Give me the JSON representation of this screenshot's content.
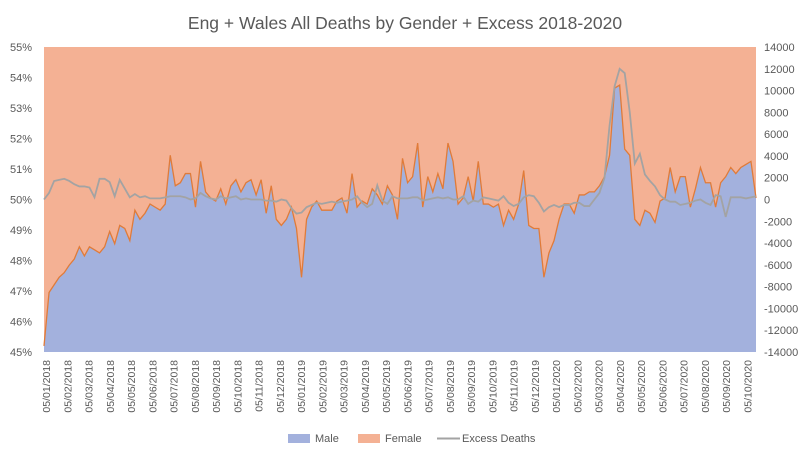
{
  "chart_data": {
    "type": "area",
    "title": "Eng + Wales All Deaths by Gender + Excess 2018-2020",
    "xlabel": "",
    "ylabel": "",
    "y_left": {
      "ylim": [
        0.45,
        0.55
      ],
      "ticks": [
        0.45,
        0.46,
        0.47,
        0.48,
        0.49,
        0.5,
        0.51,
        0.52,
        0.53,
        0.54,
        0.55
      ],
      "tick_labels": [
        "45%",
        "46%",
        "47%",
        "48%",
        "49%",
        "50%",
        "51%",
        "52%",
        "53%",
        "54%",
        "55%"
      ]
    },
    "y_right": {
      "ylim": [
        -14000,
        14000
      ],
      "ticks": [
        -14000,
        -12000,
        -10000,
        -8000,
        -6000,
        -4000,
        -2000,
        0,
        2000,
        4000,
        6000,
        8000,
        10000,
        12000,
        14000
      ],
      "tick_labels": [
        "-14000",
        "-12000",
        "-10000",
        "-8000",
        "-6000",
        "-4000",
        "-2000",
        "0",
        "2000",
        "4000",
        "6000",
        "8000",
        "10000",
        "12000",
        "14000"
      ]
    },
    "x_tick_labels": [
      "05/01/2018",
      "05/02/2018",
      "05/03/2018",
      "05/04/2018",
      "05/05/2018",
      "05/06/2018",
      "05/07/2018",
      "05/08/2018",
      "05/09/2018",
      "05/10/2018",
      "05/11/2018",
      "05/12/2018",
      "05/01/2019",
      "05/02/2019",
      "05/03/2019",
      "05/04/2019",
      "05/05/2019",
      "05/06/2019",
      "05/07/2019",
      "05/08/2019",
      "05/09/2019",
      "05/10/2019",
      "05/11/2019",
      "05/12/2019",
      "05/01/2020",
      "05/02/2020",
      "05/03/2020",
      "05/04/2020",
      "05/05/2020",
      "05/06/2020",
      "05/07/2020",
      "05/08/2020",
      "05/09/2020",
      "05/10/2020"
    ],
    "legend_position": "bottom",
    "grid": false,
    "series": [
      {
        "name": "Male",
        "axis": "left",
        "color": "#a3b1dd",
        "values": [
          0.452,
          0.4695,
          0.472,
          0.4745,
          0.476,
          0.4785,
          0.4805,
          0.4845,
          0.4815,
          0.4845,
          0.4835,
          0.4825,
          0.4845,
          0.4895,
          0.4855,
          0.4915,
          0.4905,
          0.4865,
          0.4965,
          0.4935,
          0.4955,
          0.4985,
          0.4975,
          0.4965,
          0.4985,
          0.5145,
          0.5045,
          0.5055,
          0.5085,
          0.5085,
          0.4975,
          0.5125,
          0.5025,
          0.5005,
          0.4995,
          0.5035,
          0.4985,
          0.5045,
          0.5065,
          0.5025,
          0.5055,
          0.5065,
          0.5015,
          0.5065,
          0.4955,
          0.5045,
          0.4935,
          0.4915,
          0.4935,
          0.4975,
          0.4905,
          0.4745,
          0.4935,
          0.4975,
          0.4995,
          0.4965,
          0.4965,
          0.4965,
          0.4995,
          0.5005,
          0.4955,
          0.5085,
          0.4975,
          0.4995,
          0.4985,
          0.5035,
          0.5015,
          0.4985,
          0.5045,
          0.5015,
          0.4935,
          0.5135,
          0.5055,
          0.5075,
          0.5185,
          0.4975,
          0.5075,
          0.5025,
          0.5085,
          0.5035,
          0.5185,
          0.5125,
          0.4985,
          0.5005,
          0.5075,
          0.4995,
          0.5125,
          0.4985,
          0.4985,
          0.4975,
          0.4985,
          0.4915,
          0.4965,
          0.4935,
          0.4985,
          0.5095,
          0.4915,
          0.4905,
          0.4905,
          0.4745,
          0.4825,
          0.4865,
          0.4935,
          0.4985,
          0.4985,
          0.4955,
          0.5015,
          0.5015,
          0.5025,
          0.5025,
          0.5045,
          0.5075,
          0.5145,
          0.5365,
          0.5375,
          0.5165,
          0.5145,
          0.4935,
          0.4915,
          0.4965,
          0.4955,
          0.4925,
          0.4995,
          0.5005,
          0.5105,
          0.5025,
          0.5075,
          0.5075,
          0.4975,
          0.5035,
          0.5105,
          0.5055,
          0.5055,
          0.4975,
          0.5055,
          0.5075,
          0.5105,
          0.5085,
          0.5105,
          0.5115,
          0.5125,
          0.5005
        ]
      },
      {
        "name": "Female",
        "axis": "left",
        "color": "#f4b194",
        "values_are_complement_of_male": true,
        "values": []
      },
      {
        "name": "Excess Deaths",
        "axis": "right",
        "color": "#a3a3a3",
        "values": [
          0,
          600,
          1700,
          1800,
          1900,
          1700,
          1400,
          1200,
          1200,
          1100,
          200,
          1900,
          1900,
          1600,
          300,
          1800,
          1000,
          200,
          500,
          200,
          300,
          100,
          100,
          100,
          200,
          300,
          300,
          300,
          200,
          0,
          100,
          600,
          300,
          100,
          0,
          300,
          100,
          200,
          300,
          0,
          100,
          0,
          0,
          0,
          -100,
          -100,
          -200,
          0,
          -100,
          -800,
          -1300,
          -1200,
          -700,
          -500,
          -300,
          -400,
          -300,
          -200,
          -300,
          -200,
          -100,
          0,
          300,
          -300,
          -700,
          -400,
          1300,
          -100,
          -400,
          300,
          100,
          100,
          100,
          200,
          200,
          -100,
          0,
          100,
          200,
          100,
          200,
          0,
          0,
          300,
          -400,
          -100,
          -200,
          200,
          100,
          0,
          -100,
          300,
          -300,
          -600,
          -400,
          200,
          400,
          300,
          -300,
          -1100,
          -700,
          -500,
          -700,
          -500,
          -500,
          -300,
          -300,
          -600,
          -600,
          0,
          600,
          2000,
          6800,
          10400,
          12000,
          11600,
          8000,
          3300,
          4200,
          2300,
          1700,
          1200,
          400,
          0,
          -200,
          -200,
          -500,
          -400,
          -300,
          -100,
          0,
          -300,
          -500,
          400,
          300,
          -1600,
          200,
          200,
          200,
          100,
          200,
          300
        ]
      }
    ]
  }
}
